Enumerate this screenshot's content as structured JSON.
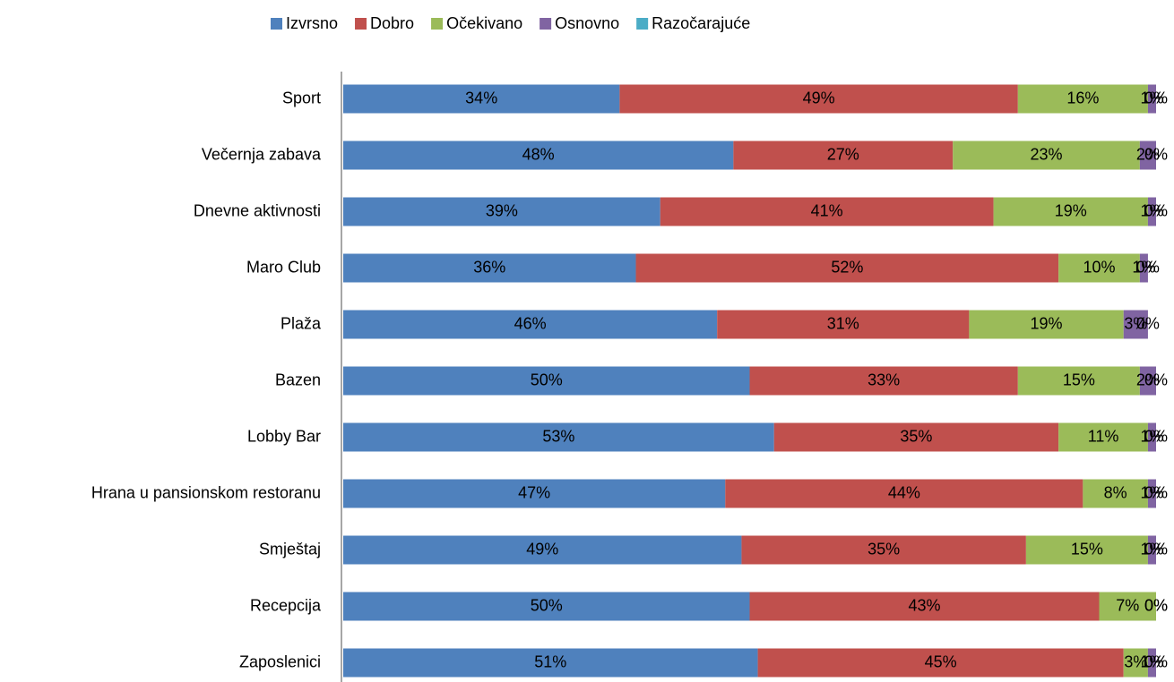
{
  "chart_data": {
    "type": "bar",
    "orientation": "horizontal",
    "stacked": true,
    "categories": [
      "Sport",
      "Večernja zabava",
      "Dnevne aktivnosti",
      "Maro Club",
      "Plaža",
      "Bazen",
      "Lobby Bar",
      "Hrana u pansionskom restoranu",
      "Smještaj",
      "Recepcija",
      "Zaposlenici"
    ],
    "xlim": [
      0,
      100
    ],
    "legend": "top",
    "series": [
      {
        "name": "Izvrsno",
        "color": "#4f81bd",
        "values": [
          34,
          48,
          39,
          36,
          46,
          50,
          53,
          47,
          49,
          50,
          51
        ],
        "value_labels": [
          "34%",
          "48%",
          "39%",
          "36%",
          "46%",
          "50%",
          "53%",
          "47%",
          "49%",
          "50%",
          "51%"
        ]
      },
      {
        "name": "Dobro",
        "color": "#c0504d",
        "values": [
          49,
          27,
          41,
          52,
          31,
          33,
          35,
          44,
          35,
          43,
          45
        ],
        "value_labels": [
          "49%",
          "27%",
          "41%",
          "52%",
          "31%",
          "33%",
          "35%",
          "44%",
          "35%",
          "43%",
          "45%"
        ]
      },
      {
        "name": "Očekivano",
        "color": "#9bbb59",
        "values": [
          16,
          23,
          19,
          10,
          19,
          15,
          11,
          8,
          15,
          7,
          3
        ],
        "value_labels": [
          "16%",
          "23%",
          "19%",
          "10%",
          "19%",
          "15%",
          "11%",
          "8%",
          "15%",
          "7%",
          "3%"
        ]
      },
      {
        "name": "Osnovno",
        "color": "#8064a2",
        "values": [
          1,
          2,
          1,
          1,
          3,
          2,
          1,
          1,
          1,
          0,
          1
        ],
        "value_labels": [
          "1%",
          "2%",
          "1%",
          "1%",
          "3%",
          "2%",
          "1%",
          "1%",
          "1%",
          "0%",
          "1%"
        ]
      },
      {
        "name": "Razočarajuće",
        "color": "#4bacc6",
        "values": [
          0,
          0,
          0,
          0,
          0,
          0,
          0,
          0,
          0,
          0,
          0
        ],
        "value_labels": [
          "0%",
          "0%",
          "0%",
          "0%",
          "0%",
          "0%",
          "0%",
          "0%",
          "0%",
          "0%",
          "0%"
        ]
      }
    ]
  }
}
